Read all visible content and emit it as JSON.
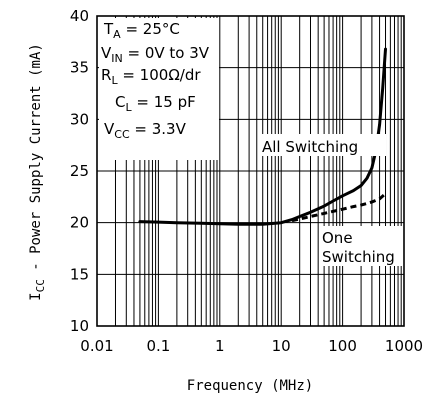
{
  "chart_data": {
    "type": "line",
    "xscale": "log",
    "xlim": [
      0.01,
      1000
    ],
    "ylim": [
      10,
      40
    ],
    "x_ticks": [
      "0.01",
      "0.1",
      "1",
      "10",
      "100",
      "1000"
    ],
    "y_ticks": [
      "10",
      "15",
      "20",
      "25",
      "30",
      "35",
      "40"
    ],
    "xlabel": "Frequency (MHz)",
    "ylabel": {
      "main": "I",
      "sub": "CC",
      "rest": " - Power Supply Current (mA)"
    },
    "grid": true,
    "conditions": [
      {
        "main": "T",
        "sub": "A",
        "rest": " = 25°C"
      },
      {
        "main": "V",
        "sub": "IN",
        "rest": " = 0V to 3V"
      },
      {
        "main": "R",
        "sub": "L",
        "rest": " = 100Ω/dr"
      },
      {
        "main": "C",
        "sub": "L",
        "rest": " = 15 pF"
      },
      {
        "main": "V",
        "sub": "CC",
        "rest": " = 3.3V"
      }
    ],
    "series": [
      {
        "name": "All Switching",
        "style": "solid",
        "x": [
          0.05,
          0.1,
          0.2,
          0.5,
          1,
          2,
          5,
          10,
          15,
          20,
          30,
          50,
          70,
          100,
          150,
          200,
          250,
          300,
          350,
          400,
          450,
          500
        ],
        "y": [
          20.1,
          20.05,
          20.0,
          19.95,
          19.9,
          19.85,
          19.85,
          20.0,
          20.3,
          20.6,
          21.0,
          21.6,
          22.1,
          22.6,
          23.1,
          23.6,
          24.3,
          25.3,
          27.0,
          29.5,
          33.0,
          36.8
        ]
      },
      {
        "name": "One Switching",
        "style": "dashed",
        "x": [
          15,
          20,
          30,
          50,
          100,
          150,
          200,
          300,
          400,
          500
        ],
        "y": [
          20.2,
          20.35,
          20.6,
          20.9,
          21.3,
          21.55,
          21.7,
          22.0,
          22.3,
          22.8
        ]
      }
    ],
    "labels": {
      "all": "All Switching",
      "one_line1": "One",
      "one_line2": "Switching"
    }
  }
}
